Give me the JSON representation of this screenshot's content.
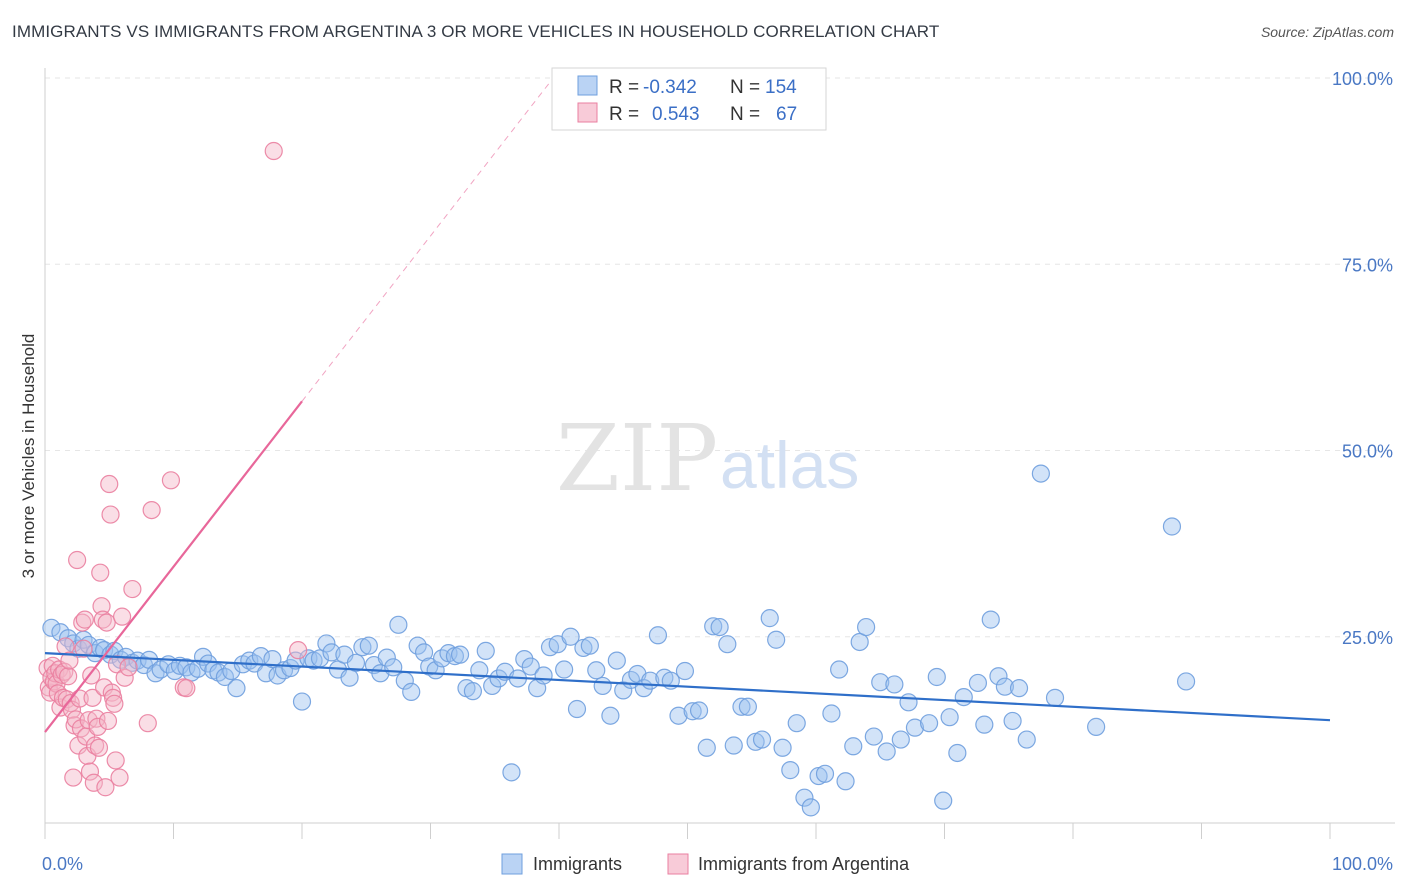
{
  "title": "IMMIGRANTS VS IMMIGRANTS FROM ARGENTINA 3 OR MORE VEHICLES IN HOUSEHOLD CORRELATION CHART",
  "source": "Source: ZipAtlas.com",
  "watermark": {
    "zip": "ZIP",
    "atlas": "atlas"
  },
  "colors": {
    "immigrants": "#9cc1ef",
    "immigrants_stroke": "#6f9fde",
    "immigrants_line": "#2f6fc9",
    "argentina": "#f5b5c8",
    "argentina_stroke": "#ea7fa0",
    "argentina_line": "#e8679a",
    "tick_label": "#4a78c4",
    "grid": "#e6e6e6"
  },
  "legend": {
    "r_label": "R =",
    "n_label": "N =",
    "immigrants": {
      "r": "-0.342",
      "n": "154"
    },
    "argentina": {
      "r": "0.543",
      "n": "67"
    }
  },
  "bottom_legend": [
    "Immigrants",
    "Immigrants from Argentina"
  ],
  "chart_data": {
    "type": "scatter",
    "title": "IMMIGRANTS VS IMMIGRANTS FROM ARGENTINA 3 OR MORE VEHICLES IN HOUSEHOLD CORRELATION CHART",
    "xlabel": "",
    "ylabel": "3 or more Vehicles in Household",
    "xlim": [
      0,
      100
    ],
    "ylim": [
      0,
      100
    ],
    "x_tick_labels": [
      "0.0%",
      "100.0%"
    ],
    "y_ticks": [
      25,
      50,
      75,
      100
    ],
    "y_tick_labels": [
      "25.0%",
      "50.0%",
      "75.0%",
      "100.0%"
    ],
    "grid": true,
    "legend_position": "top-center",
    "series": [
      {
        "name": "Immigrants",
        "r": -0.342,
        "n": 154,
        "trend": {
          "x": [
            0,
            100
          ],
          "y": [
            22.8,
            13.8
          ]
        },
        "points": [
          [
            0.5,
            26.2
          ],
          [
            1.2,
            25.6
          ],
          [
            1.8,
            24.8
          ],
          [
            2.2,
            24.1
          ],
          [
            2.6,
            23.4
          ],
          [
            3.0,
            24.6
          ],
          [
            3.4,
            23.9
          ],
          [
            3.9,
            22.8
          ],
          [
            4.3,
            23.5
          ],
          [
            4.6,
            23.2
          ],
          [
            5.1,
            22.6
          ],
          [
            5.4,
            23.1
          ],
          [
            5.9,
            21.9
          ],
          [
            6.3,
            22.3
          ],
          [
            6.8,
            21.5
          ],
          [
            7.2,
            21.8
          ],
          [
            7.7,
            21.2
          ],
          [
            8.1,
            21.9
          ],
          [
            8.6,
            20.1
          ],
          [
            9.0,
            20.6
          ],
          [
            9.6,
            21.3
          ],
          [
            10.1,
            20.4
          ],
          [
            10.5,
            21.1
          ],
          [
            11.0,
            20.9
          ],
          [
            11.4,
            20.2
          ],
          [
            11.9,
            20.7
          ],
          [
            12.3,
            22.3
          ],
          [
            12.7,
            21.4
          ],
          [
            13.1,
            20.5
          ],
          [
            13.5,
            20.2
          ],
          [
            14.0,
            19.6
          ],
          [
            14.5,
            20.4
          ],
          [
            14.9,
            18.1
          ],
          [
            15.4,
            21.3
          ],
          [
            15.9,
            21.8
          ],
          [
            16.3,
            21.4
          ],
          [
            16.8,
            22.4
          ],
          [
            17.2,
            20.1
          ],
          [
            17.7,
            22.0
          ],
          [
            18.1,
            19.8
          ],
          [
            18.6,
            20.5
          ],
          [
            19.1,
            20.8
          ],
          [
            19.5,
            21.8
          ],
          [
            20.0,
            16.3
          ],
          [
            20.5,
            22.1
          ],
          [
            20.9,
            21.8
          ],
          [
            21.4,
            22.1
          ],
          [
            21.9,
            24.1
          ],
          [
            22.3,
            22.9
          ],
          [
            22.8,
            20.6
          ],
          [
            23.3,
            22.6
          ],
          [
            23.7,
            19.5
          ],
          [
            24.2,
            21.5
          ],
          [
            24.7,
            23.6
          ],
          [
            25.2,
            23.8
          ],
          [
            25.6,
            21.2
          ],
          [
            26.1,
            20.1
          ],
          [
            26.6,
            22.2
          ],
          [
            27.1,
            20.9
          ],
          [
            27.5,
            26.6
          ],
          [
            28.0,
            19.1
          ],
          [
            28.5,
            17.6
          ],
          [
            29.0,
            23.8
          ],
          [
            29.5,
            22.9
          ],
          [
            29.9,
            21.0
          ],
          [
            30.4,
            20.5
          ],
          [
            30.9,
            22.1
          ],
          [
            31.4,
            22.8
          ],
          [
            31.9,
            22.4
          ],
          [
            32.3,
            22.6
          ],
          [
            32.8,
            18.1
          ],
          [
            33.3,
            17.7
          ],
          [
            33.8,
            20.5
          ],
          [
            34.3,
            23.1
          ],
          [
            34.8,
            18.4
          ],
          [
            35.3,
            19.4
          ],
          [
            35.8,
            20.3
          ],
          [
            36.3,
            6.8
          ],
          [
            36.8,
            19.4
          ],
          [
            37.3,
            22.0
          ],
          [
            37.8,
            21.0
          ],
          [
            38.3,
            18.1
          ],
          [
            38.8,
            19.8
          ],
          [
            39.3,
            23.6
          ],
          [
            39.9,
            24.0
          ],
          [
            40.4,
            20.6
          ],
          [
            40.9,
            25.0
          ],
          [
            41.4,
            15.3
          ],
          [
            41.9,
            23.5
          ],
          [
            42.4,
            23.8
          ],
          [
            42.9,
            20.5
          ],
          [
            43.4,
            18.4
          ],
          [
            44.0,
            14.4
          ],
          [
            44.5,
            21.8
          ],
          [
            45.0,
            17.8
          ],
          [
            45.6,
            19.2
          ],
          [
            46.1,
            20.0
          ],
          [
            46.6,
            18.1
          ],
          [
            47.1,
            19.1
          ],
          [
            47.7,
            25.2
          ],
          [
            48.2,
            19.5
          ],
          [
            48.7,
            19.1
          ],
          [
            49.3,
            14.4
          ],
          [
            49.8,
            20.4
          ],
          [
            50.4,
            15.0
          ],
          [
            50.9,
            15.1
          ],
          [
            51.5,
            10.1
          ],
          [
            52.0,
            26.4
          ],
          [
            52.5,
            26.3
          ],
          [
            53.1,
            24.0
          ],
          [
            53.6,
            10.4
          ],
          [
            54.2,
            15.6
          ],
          [
            54.7,
            15.6
          ],
          [
            55.3,
            10.9
          ],
          [
            55.8,
            11.2
          ],
          [
            56.4,
            27.5
          ],
          [
            56.9,
            24.6
          ],
          [
            57.4,
            10.1
          ],
          [
            58.0,
            7.1
          ],
          [
            58.5,
            13.4
          ],
          [
            59.1,
            3.4
          ],
          [
            59.6,
            2.1
          ],
          [
            60.2,
            6.3
          ],
          [
            60.7,
            6.6
          ],
          [
            61.2,
            14.7
          ],
          [
            61.8,
            20.6
          ],
          [
            62.3,
            5.6
          ],
          [
            62.9,
            10.3
          ],
          [
            63.4,
            24.3
          ],
          [
            63.9,
            26.3
          ],
          [
            64.5,
            11.6
          ],
          [
            65.0,
            18.9
          ],
          [
            65.5,
            9.6
          ],
          [
            66.1,
            18.6
          ],
          [
            66.6,
            11.2
          ],
          [
            67.2,
            16.2
          ],
          [
            67.7,
            12.8
          ],
          [
            68.8,
            13.4
          ],
          [
            69.4,
            19.6
          ],
          [
            69.9,
            3.0
          ],
          [
            70.4,
            14.2
          ],
          [
            71.0,
            9.4
          ],
          [
            71.5,
            16.9
          ],
          [
            72.6,
            18.8
          ],
          [
            73.1,
            13.2
          ],
          [
            73.6,
            27.3
          ],
          [
            74.2,
            19.7
          ],
          [
            74.7,
            18.3
          ],
          [
            75.3,
            13.7
          ],
          [
            75.8,
            18.1
          ],
          [
            76.4,
            11.2
          ],
          [
            77.5,
            46.9
          ],
          [
            78.6,
            16.8
          ],
          [
            81.8,
            12.9
          ],
          [
            87.7,
            39.8
          ],
          [
            88.8,
            19.0
          ]
        ]
      },
      {
        "name": "Immigrants from Argentina",
        "r": 0.543,
        "n": 67,
        "trend": {
          "x": [
            0,
            20
          ],
          "y": [
            12.2,
            56.6
          ]
        },
        "trend_dashed": {
          "x": [
            20,
            40
          ],
          "y": [
            56.6,
            101.0
          ]
        },
        "points": [
          [
            0.2,
            20.8
          ],
          [
            0.3,
            18.2
          ],
          [
            0.4,
            17.5
          ],
          [
            0.5,
            19.5
          ],
          [
            0.6,
            21.1
          ],
          [
            0.7,
            19.0
          ],
          [
            0.8,
            20.1
          ],
          [
            0.9,
            18.7
          ],
          [
            1.0,
            17.4
          ],
          [
            1.1,
            20.6
          ],
          [
            1.2,
            15.5
          ],
          [
            1.3,
            19.9
          ],
          [
            1.4,
            16.8
          ],
          [
            1.5,
            20.3
          ],
          [
            1.6,
            23.7
          ],
          [
            1.7,
            16.6
          ],
          [
            1.8,
            19.7
          ],
          [
            1.9,
            21.8
          ],
          [
            2.0,
            16.1
          ],
          [
            2.1,
            15.2
          ],
          [
            2.2,
            6.1
          ],
          [
            2.3,
            13.1
          ],
          [
            2.4,
            13.9
          ],
          [
            2.5,
            35.3
          ],
          [
            2.6,
            10.4
          ],
          [
            2.7,
            16.7
          ],
          [
            2.8,
            12.7
          ],
          [
            2.9,
            26.9
          ],
          [
            3.0,
            23.4
          ],
          [
            3.1,
            27.3
          ],
          [
            3.2,
            11.6
          ],
          [
            3.3,
            9.0
          ],
          [
            3.4,
            13.8
          ],
          [
            3.5,
            6.9
          ],
          [
            3.6,
            19.8
          ],
          [
            3.7,
            16.8
          ],
          [
            3.8,
            5.4
          ],
          [
            3.9,
            10.4
          ],
          [
            4.0,
            14.0
          ],
          [
            4.1,
            12.9
          ],
          [
            4.2,
            10.1
          ],
          [
            4.3,
            33.6
          ],
          [
            4.4,
            29.1
          ],
          [
            4.5,
            27.3
          ],
          [
            4.6,
            18.2
          ],
          [
            4.7,
            4.8
          ],
          [
            4.8,
            26.9
          ],
          [
            4.9,
            13.7
          ],
          [
            5.0,
            45.5
          ],
          [
            5.1,
            41.4
          ],
          [
            5.2,
            17.5
          ],
          [
            5.3,
            16.8
          ],
          [
            5.4,
            16.0
          ],
          [
            5.5,
            8.4
          ],
          [
            5.6,
            21.3
          ],
          [
            5.8,
            6.1
          ],
          [
            6.0,
            27.7
          ],
          [
            6.2,
            19.5
          ],
          [
            6.5,
            20.9
          ],
          [
            6.8,
            31.4
          ],
          [
            8.0,
            13.4
          ],
          [
            8.3,
            42.0
          ],
          [
            9.8,
            46.0
          ],
          [
            10.8,
            18.2
          ],
          [
            11.0,
            18.1
          ],
          [
            17.8,
            90.2
          ],
          [
            19.7,
            23.2
          ]
        ]
      }
    ]
  }
}
